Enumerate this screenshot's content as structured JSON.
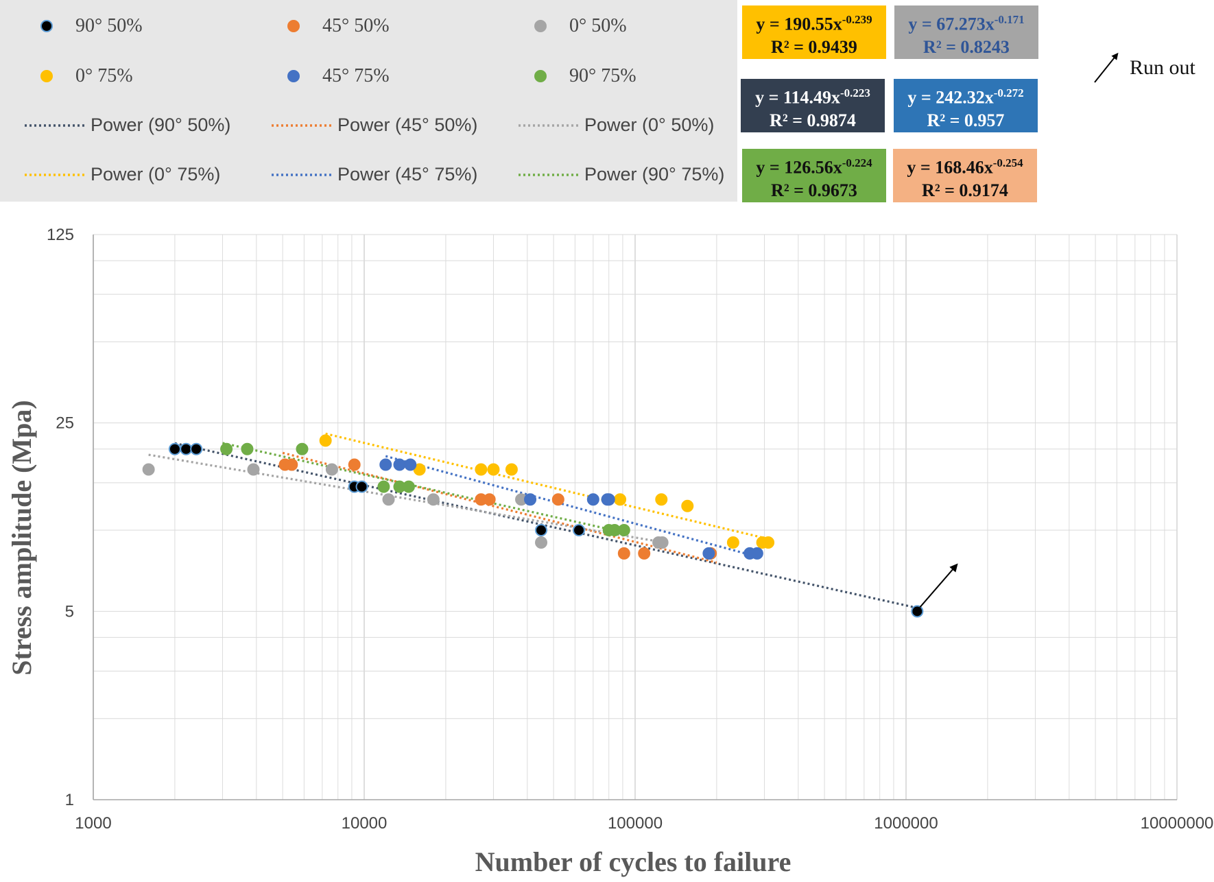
{
  "legend": {
    "items": [
      {
        "label": "90° 50%",
        "type": "marker",
        "color": "#000000",
        "edge": "#5b9bd5"
      },
      {
        "label": "45° 50%",
        "type": "marker",
        "color": "#ed7d31",
        "edge": "#ed7d31"
      },
      {
        "label": "0° 50%",
        "type": "marker",
        "color": "#a5a5a5",
        "edge": "#a5a5a5"
      },
      {
        "label": "0° 75%",
        "type": "marker",
        "color": "#ffc000",
        "edge": "#ffc000"
      },
      {
        "label": "45° 75%",
        "type": "marker",
        "color": "#4472c4",
        "edge": "#4472c4"
      },
      {
        "label": "90° 75%",
        "type": "marker",
        "color": "#70ad47",
        "edge": "#70ad47"
      },
      {
        "label": "Power (90° 50%)",
        "type": "trend",
        "color": "#44546a"
      },
      {
        "label": "Power (45° 50%)",
        "type": "trend",
        "color": "#ed7d31"
      },
      {
        "label": "Power (0° 50%)",
        "type": "trend",
        "color": "#a5a5a5"
      },
      {
        "label": "Power (0° 75%)",
        "type": "trend",
        "color": "#ffc000"
      },
      {
        "label": "Power (45° 75%)",
        "type": "trend",
        "color": "#4472c4"
      },
      {
        "label": "Power (90° 75%)",
        "type": "trend",
        "color": "#70ad47"
      }
    ]
  },
  "equations": [
    {
      "eq_main": "y = 190.55x",
      "exp": "-0.239",
      "r2": "R² = 0.9439",
      "bg": "#ffc000",
      "fg": "#111111"
    },
    {
      "eq_main": "y = 67.273x",
      "exp": "-0.171",
      "r2": "R² = 0.8243",
      "bg": "#a5a5a5",
      "fg": "#2f5597"
    },
    {
      "eq_main": "y = 114.49x",
      "exp": "-0.223",
      "r2": "R² = 0.9874",
      "bg": "#333f50",
      "fg": "#ffffff"
    },
    {
      "eq_main": "y = 242.32x",
      "exp": "-0.272",
      "r2": "R² = 0.957",
      "bg": "#2e75b6",
      "fg": "#ffffff"
    },
    {
      "eq_main": "y = 126.56x",
      "exp": "-0.224",
      "r2": "R² = 0.9673",
      "bg": "#70ad47",
      "fg": "#111111"
    },
    {
      "eq_main": "y = 168.46x",
      "exp": "-0.254",
      "r2": "R² = 0.9174",
      "bg": "#f4b183",
      "fg": "#111111"
    }
  ],
  "runout_label": "Run out",
  "chart_data": {
    "type": "scatter",
    "xscale": "log",
    "yscale": "log",
    "xlabel": "Number of cycles to failure",
    "ylabel": "Stress amplitude (Mpa)",
    "xlim": [
      1000,
      10000000
    ],
    "ylim": [
      1,
      125
    ],
    "x_ticks": [
      "1000",
      "10000",
      "100000",
      "1000000",
      "10000000"
    ],
    "y_ticks": [
      "1",
      "5",
      "25",
      "125"
    ],
    "grid": true,
    "series": [
      {
        "name": "90° 50%",
        "color": "#000000",
        "edge": "#5b9bd5",
        "trend_color": "#44546a",
        "trend_a": 114.49,
        "trend_b": -0.223,
        "trend_range": [
          2000,
          1100000
        ],
        "x": [
          2000,
          2200,
          2400,
          9200,
          9800,
          45000,
          62000,
          190000,
          1100000
        ],
        "y": [
          20,
          20,
          20,
          14.5,
          14.5,
          10,
          10,
          8.2,
          5
        ]
      },
      {
        "name": "45° 50%",
        "color": "#ed7d31",
        "edge": "#ed7d31",
        "trend_color": "#ed7d31",
        "trend_a": 168.46,
        "trend_b": -0.254,
        "trend_range": [
          5000,
          200000
        ],
        "x": [
          5100,
          5400,
          9200,
          27000,
          29000,
          52000,
          91000,
          108000,
          190000
        ],
        "y": [
          17.5,
          17.5,
          17.5,
          13,
          13,
          13,
          8.2,
          8.2,
          8.2
        ]
      },
      {
        "name": "0° 50%",
        "color": "#a5a5a5",
        "edge": "#a5a5a5",
        "trend_color": "#a5a5a5",
        "trend_a": 67.273,
        "trend_b": -0.171,
        "trend_range": [
          1600,
          130000
        ],
        "x": [
          1600,
          3900,
          7600,
          12300,
          18000,
          38000,
          45000,
          122000,
          126000
        ],
        "y": [
          16.8,
          16.8,
          16.8,
          13,
          13,
          13,
          9,
          9,
          9
        ]
      },
      {
        "name": "0° 75%",
        "color": "#ffc000",
        "edge": "#ffc000",
        "trend_color": "#ffc000",
        "trend_a": 190.55,
        "trend_b": -0.239,
        "trend_range": [
          7200,
          310000
        ],
        "x": [
          7200,
          16000,
          27000,
          30000,
          35000,
          88000,
          125000,
          156000,
          230000,
          295000,
          310000
        ],
        "y": [
          21.5,
          16.8,
          16.8,
          16.8,
          16.8,
          13,
          13,
          12.3,
          9,
          9,
          9
        ]
      },
      {
        "name": "45° 75%",
        "color": "#4472c4",
        "edge": "#4472c4",
        "trend_color": "#4472c4",
        "trend_a": 242.32,
        "trend_b": -0.272,
        "trend_range": [
          12000,
          280000
        ],
        "x": [
          12000,
          13500,
          14800,
          41000,
          70000,
          79000,
          80000,
          187000,
          265000,
          282000
        ],
        "y": [
          17.5,
          17.5,
          17.5,
          13,
          13,
          13,
          13,
          8.2,
          8.2,
          8.2
        ]
      },
      {
        "name": "90° 75%",
        "color": "#70ad47",
        "edge": "#70ad47",
        "trend_color": "#70ad47",
        "trend_a": 126.56,
        "trend_b": -0.224,
        "trend_range": [
          3000,
          92000
        ],
        "x": [
          3100,
          3700,
          5900,
          11800,
          13500,
          14600,
          80000,
          84000,
          91000
        ],
        "y": [
          20,
          20,
          20,
          14.5,
          14.5,
          14.5,
          10,
          10,
          10
        ]
      }
    ],
    "runout": {
      "x": 1100000,
      "y": 5
    }
  }
}
